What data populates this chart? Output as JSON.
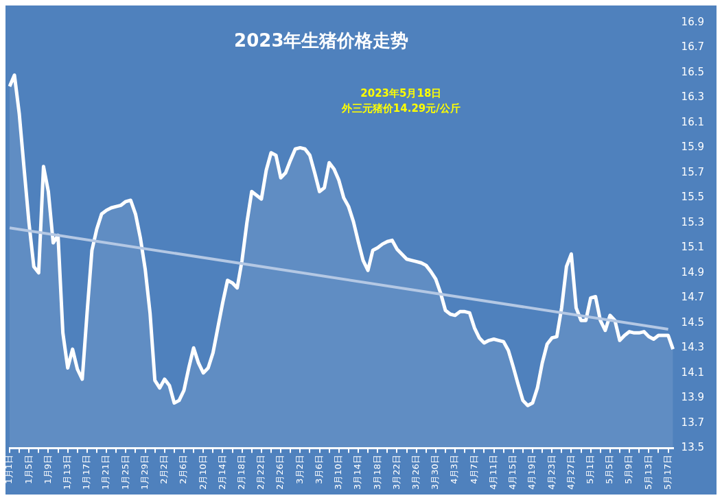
{
  "chart_data": {
    "type": "area",
    "title": "2023年生猪价格走势",
    "annotations": [
      "2023年5月18日",
      "外三元猪价14.29元/公斤"
    ],
    "categories": [
      "1月1日",
      null,
      null,
      null,
      "1月5日",
      null,
      null,
      null,
      "1月9日",
      null,
      null,
      null,
      "1月13日",
      null,
      null,
      null,
      "1月17日",
      null,
      null,
      null,
      "1月21日",
      null,
      null,
      null,
      "1月25日",
      null,
      null,
      null,
      "1月29日",
      null,
      null,
      null,
      "2月2日",
      null,
      null,
      null,
      "2月6日",
      null,
      null,
      null,
      "2月10日",
      null,
      null,
      null,
      "2月14日",
      null,
      null,
      null,
      "2月18日",
      null,
      null,
      null,
      "2月22日",
      null,
      null,
      null,
      "2月26日",
      null,
      null,
      null,
      "3月2日",
      null,
      null,
      null,
      "3月6日",
      null,
      null,
      null,
      "3月10日",
      null,
      null,
      null,
      "3月14日",
      null,
      null,
      null,
      "3月18日",
      null,
      null,
      null,
      "3月22日",
      null,
      null,
      null,
      "3月26日",
      null,
      null,
      null,
      "3月30日",
      null,
      null,
      null,
      "4月3日",
      null,
      null,
      null,
      "4月7日",
      null,
      null,
      null,
      "4月11日",
      null,
      null,
      null,
      "4月15日",
      null,
      null,
      null,
      "4月19日",
      null,
      null,
      null,
      "4月23日",
      null,
      null,
      null,
      "4月27日",
      null,
      null,
      null,
      "5月1日",
      null,
      null,
      null,
      "5月5日",
      null,
      null,
      null,
      "5月9日",
      null,
      null,
      null,
      "5月13日",
      null,
      null,
      null,
      "5月17日",
      null
    ],
    "series": [
      {
        "color": "#ffffff",
        "values": [
          16.39,
          16.48,
          16.17,
          15.73,
          15.3,
          14.95,
          14.9,
          15.75,
          15.55,
          15.14,
          15.2,
          14.42,
          14.14,
          14.29,
          14.13,
          14.05,
          14.58,
          15.08,
          15.25,
          15.37,
          15.4,
          15.42,
          15.43,
          15.44,
          15.47,
          15.48,
          15.37,
          15.18,
          14.93,
          14.58,
          14.04,
          13.98,
          14.05,
          14.0,
          13.86,
          13.88,
          13.96,
          14.14,
          14.3,
          14.18,
          14.1,
          14.14,
          14.26,
          14.46,
          14.66,
          14.84,
          14.82,
          14.78,
          15.0,
          15.3,
          15.55,
          15.52,
          15.49,
          15.72,
          15.86,
          15.84,
          15.66,
          15.7,
          15.8,
          15.89,
          15.9,
          15.89,
          15.84,
          15.7,
          15.55,
          15.58,
          15.78,
          15.73,
          15.64,
          15.5,
          15.43,
          15.31,
          15.15,
          15.0,
          14.92,
          15.08,
          15.1,
          15.13,
          15.15,
          15.16,
          15.09,
          15.05,
          15.01,
          15.0,
          14.99,
          14.98,
          14.96,
          14.91,
          14.85,
          14.74,
          14.6,
          14.57,
          14.56,
          14.59,
          14.59,
          14.58,
          14.46,
          14.38,
          14.34,
          14.36,
          14.37,
          14.36,
          14.35,
          14.28,
          14.15,
          14.01,
          13.88,
          13.84,
          13.86,
          13.98,
          14.18,
          14.33,
          14.38,
          14.39,
          14.62,
          14.95,
          15.05,
          14.62,
          14.52,
          14.52,
          14.7,
          14.71,
          14.52,
          14.44,
          14.56,
          14.52,
          14.36,
          14.4,
          14.43,
          14.42,
          14.42,
          14.43,
          14.39,
          14.37,
          14.4,
          14.4,
          14.4,
          14.29
        ]
      },
      {
        "type": "line",
        "color": "#b4c8e4",
        "x": [
          "1月1日",
          "5月17日"
        ],
        "values": [
          15.26,
          14.45
        ]
      }
    ],
    "ylim": [
      13.5,
      16.9
    ],
    "yticks": [
      13.5,
      13.7,
      13.9,
      14.1,
      14.3,
      14.5,
      14.7,
      14.9,
      15.1,
      15.3,
      15.5,
      15.7,
      15.9,
      16.1,
      16.3,
      16.5,
      16.7,
      16.9
    ],
    "grid": false,
    "legend": false
  }
}
